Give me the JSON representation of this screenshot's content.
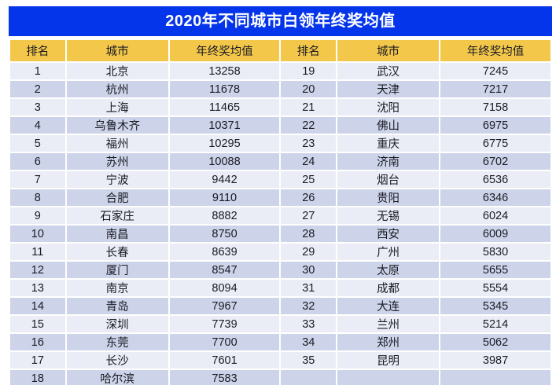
{
  "title": "2020年不同城市白领年终奖均值",
  "colors": {
    "title_bg": "#0435EA",
    "title_text": "#FFFFFF",
    "header_bg": "#F2C74A",
    "row_light": "#EAEDF6",
    "row_dark": "#CDD4E9",
    "cell_text": "#1A1A24",
    "grid": "#FFFFFF"
  },
  "layout_note": "two-panel table: ranks 1-18 in left panel, ranks 19-35 in right panel, last right cell group empty",
  "chart_data": {
    "type": "table",
    "title": "2020年不同城市白领年终奖均值",
    "columns": [
      "排名",
      "城市",
      "年终奖均值"
    ],
    "rows": [
      [
        1,
        "北京",
        13258
      ],
      [
        2,
        "杭州",
        11678
      ],
      [
        3,
        "上海",
        11465
      ],
      [
        4,
        "乌鲁木齐",
        10371
      ],
      [
        5,
        "福州",
        10295
      ],
      [
        6,
        "苏州",
        10088
      ],
      [
        7,
        "宁波",
        9442
      ],
      [
        8,
        "合肥",
        9110
      ],
      [
        9,
        "石家庄",
        8882
      ],
      [
        10,
        "南昌",
        8750
      ],
      [
        11,
        "长春",
        8639
      ],
      [
        12,
        "厦门",
        8547
      ],
      [
        13,
        "南京",
        8094
      ],
      [
        14,
        "青岛",
        7967
      ],
      [
        15,
        "深圳",
        7739
      ],
      [
        16,
        "东莞",
        7700
      ],
      [
        17,
        "长沙",
        7601
      ],
      [
        18,
        "哈尔滨",
        7583
      ],
      [
        19,
        "武汉",
        7245
      ],
      [
        20,
        "天津",
        7217
      ],
      [
        21,
        "沈阳",
        7158
      ],
      [
        22,
        "佛山",
        6975
      ],
      [
        23,
        "重庆",
        6775
      ],
      [
        24,
        "济南",
        6702
      ],
      [
        25,
        "烟台",
        6536
      ],
      [
        26,
        "贵阳",
        6346
      ],
      [
        27,
        "无锡",
        6024
      ],
      [
        28,
        "西安",
        6009
      ],
      [
        29,
        "广州",
        5830
      ],
      [
        30,
        "太原",
        5655
      ],
      [
        31,
        "成都",
        5554
      ],
      [
        32,
        "大连",
        5345
      ],
      [
        33,
        "兰州",
        5214
      ],
      [
        34,
        "郑州",
        5062
      ],
      [
        35,
        "昆明",
        3987
      ]
    ],
    "rows_per_panel": 18,
    "panels": 2
  }
}
